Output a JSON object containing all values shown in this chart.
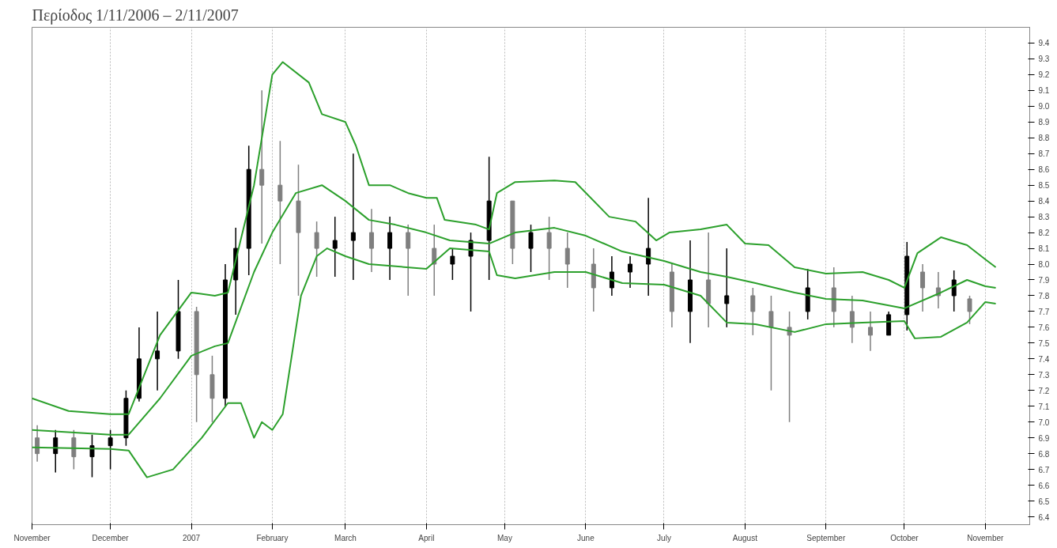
{
  "chart_data": {
    "type": "candlestick",
    "title": "Περίοδος 1/11/2006 – 2/11/2007",
    "colors": [
      "#7f7f7f",
      "#000000",
      "#7f7f7f",
      "#000000",
      "#000000",
      "#000000",
      "#000000",
      "#000000",
      "#000000",
      "#7f7f7f",
      "#7f7f7f",
      "#000000",
      "#000000",
      "#000000",
      "#7f7f7f",
      "#7f7f7f",
      "#7f7f7f",
      "#7f7f7f",
      "#000000",
      "#000000",
      "#7f7f7f",
      "#000000",
      "#7f7f7f",
      "#7f7f7f",
      "#000000",
      "#000000",
      "#000000",
      "#7f7f7f",
      "#000000",
      "#7f7f7f",
      "#7f7f7f",
      "#7f7f7f",
      "#000000",
      "#000000",
      "#000000",
      "#7f7f7f",
      "#000000",
      "#7f7f7f",
      "#000000",
      "#7f7f7f",
      "#7f7f7f",
      "#7f7f7f",
      "#000000",
      "#7f7f7f",
      "#7f7f7f",
      "#7f7f7f",
      "#000000",
      "#000000",
      "#7f7f7f",
      "#7f7f7f",
      "#000000",
      "#7f7f7f"
    ],
    "x": [
      "2006-11-03",
      "2006-11-10",
      "2006-11-17",
      "2006-11-24",
      "2006-12-01",
      "2006-12-07",
      "2006-12-12",
      "2006-12-19",
      "2006-12-27",
      "2007-01-03",
      "2007-01-09",
      "2007-01-14",
      "2007-01-18",
      "2007-01-23",
      "2007-01-28",
      "2007-02-04",
      "2007-02-11",
      "2007-02-18",
      "2007-02-25",
      "2007-03-04",
      "2007-03-11",
      "2007-03-18",
      "2007-03-25",
      "2007-04-04",
      "2007-04-11",
      "2007-04-18",
      "2007-04-25",
      "2007-05-04",
      "2007-05-11",
      "2007-05-18",
      "2007-05-25",
      "2007-06-04",
      "2007-06-11",
      "2007-06-18",
      "2007-06-25",
      "2007-07-04",
      "2007-07-11",
      "2007-07-18",
      "2007-07-25",
      "2007-08-04",
      "2007-08-11",
      "2007-08-18",
      "2007-08-25",
      "2007-09-04",
      "2007-09-11",
      "2007-09-18",
      "2007-09-25",
      "2007-10-02",
      "2007-10-08",
      "2007-10-14",
      "2007-10-20",
      "2007-10-26"
    ],
    "ohlc": [
      [
        6.9,
        6.98,
        6.75,
        6.8
      ],
      [
        6.8,
        6.95,
        6.68,
        6.9
      ],
      [
        6.9,
        6.95,
        6.7,
        6.78
      ],
      [
        6.78,
        6.92,
        6.65,
        6.85
      ],
      [
        6.85,
        6.95,
        6.7,
        6.9
      ],
      [
        6.9,
        7.2,
        6.85,
        7.15
      ],
      [
        7.15,
        7.6,
        7.13,
        7.4
      ],
      [
        7.4,
        7.7,
        7.2,
        7.45
      ],
      [
        7.45,
        7.9,
        7.4,
        7.7
      ],
      [
        7.7,
        7.73,
        7.0,
        7.3
      ],
      [
        7.3,
        7.42,
        7.0,
        7.15
      ],
      [
        7.15,
        8.0,
        7.1,
        7.9
      ],
      [
        7.9,
        8.23,
        7.68,
        8.1
      ],
      [
        8.1,
        8.75,
        7.93,
        8.6
      ],
      [
        8.6,
        9.1,
        8.13,
        8.5
      ],
      [
        8.5,
        8.78,
        8.0,
        8.4
      ],
      [
        8.4,
        8.63,
        7.8,
        8.2
      ],
      [
        8.2,
        8.27,
        7.92,
        8.1
      ],
      [
        8.1,
        8.3,
        7.92,
        8.15
      ],
      [
        8.15,
        8.7,
        7.9,
        8.2
      ],
      [
        8.2,
        8.35,
        7.95,
        8.1
      ],
      [
        8.1,
        8.3,
        7.9,
        8.2
      ],
      [
        8.2,
        8.25,
        7.8,
        8.1
      ],
      [
        8.1,
        8.25,
        7.8,
        8.0
      ],
      [
        8.0,
        8.1,
        7.9,
        8.05
      ],
      [
        8.05,
        8.2,
        7.7,
        8.15
      ],
      [
        8.15,
        8.68,
        7.9,
        8.4
      ],
      [
        8.4,
        8.4,
        8.0,
        8.1
      ],
      [
        8.1,
        8.25,
        7.95,
        8.2
      ],
      [
        8.2,
        8.3,
        7.9,
        8.1
      ],
      [
        8.1,
        8.2,
        7.85,
        8.0
      ],
      [
        8.0,
        8.1,
        7.7,
        7.85
      ],
      [
        7.85,
        8.05,
        7.8,
        7.95
      ],
      [
        7.95,
        8.05,
        7.85,
        8.0
      ],
      [
        8.0,
        8.42,
        7.8,
        8.1
      ],
      [
        7.95,
        8.0,
        7.6,
        7.7
      ],
      [
        7.7,
        8.15,
        7.5,
        7.9
      ],
      [
        7.9,
        8.2,
        7.6,
        7.75
      ],
      [
        7.75,
        8.1,
        7.6,
        7.8
      ],
      [
        7.8,
        7.85,
        7.55,
        7.7
      ],
      [
        7.7,
        7.8,
        7.2,
        7.6
      ],
      [
        7.6,
        7.7,
        7.0,
        7.55
      ],
      [
        7.7,
        7.97,
        7.65,
        7.85
      ],
      [
        7.85,
        7.98,
        7.6,
        7.7
      ],
      [
        7.7,
        7.8,
        7.5,
        7.6
      ],
      [
        7.6,
        7.7,
        7.45,
        7.55
      ],
      [
        7.55,
        7.7,
        7.55,
        7.68
      ],
      [
        7.68,
        8.14,
        7.58,
        8.05
      ],
      [
        7.95,
        8.0,
        7.7,
        7.85
      ],
      [
        7.85,
        7.95,
        7.72,
        7.8
      ],
      [
        7.8,
        7.96,
        7.7,
        7.9
      ],
      [
        7.78,
        7.8,
        7.62,
        7.7
      ]
    ],
    "series": [
      {
        "type": "line",
        "color": "#2ca02c",
        "x": [
          "2006-11-01",
          "2006-11-15",
          "2006-12-01",
          "2006-12-08",
          "2006-12-20",
          "2007-01-01",
          "2007-01-10",
          "2007-01-15",
          "2007-01-25",
          "2007-02-01",
          "2007-02-05",
          "2007-02-15",
          "2007-02-20",
          "2007-03-01",
          "2007-03-05",
          "2007-03-10",
          "2007-03-18",
          "2007-03-25",
          "2007-04-01",
          "2007-04-05",
          "2007-04-08",
          "2007-04-20",
          "2007-04-25",
          "2007-04-28",
          "2007-05-05",
          "2007-05-20",
          "2007-05-28",
          "2007-06-10",
          "2007-06-20",
          "2007-06-28",
          "2007-07-03",
          "2007-07-15",
          "2007-07-25",
          "2007-08-01",
          "2007-08-10",
          "2007-08-20",
          "2007-09-01",
          "2007-09-15",
          "2007-09-25",
          "2007-10-01",
          "2007-10-06",
          "2007-10-15",
          "2007-10-25",
          "2007-11-01",
          "2007-11-05"
        ],
        "values": [
          7.15,
          7.07,
          7.05,
          7.05,
          7.55,
          7.82,
          7.8,
          7.82,
          8.5,
          9.2,
          9.28,
          9.15,
          8.95,
          8.9,
          8.75,
          8.5,
          8.5,
          8.45,
          8.42,
          8.42,
          8.28,
          8.25,
          8.22,
          8.45,
          8.52,
          8.53,
          8.52,
          8.3,
          8.27,
          8.15,
          8.2,
          8.22,
          8.25,
          8.13,
          8.12,
          7.98,
          7.94,
          7.95,
          7.9,
          7.85,
          8.07,
          8.17,
          8.12,
          8.03,
          7.98
        ]
      },
      {
        "type": "line",
        "color": "#2ca02c",
        "x": [
          "2006-11-01",
          "2006-12-01",
          "2006-12-08",
          "2006-12-20",
          "2007-01-01",
          "2007-01-10",
          "2007-01-15",
          "2007-01-25",
          "2007-02-01",
          "2007-02-10",
          "2007-02-20",
          "2007-03-01",
          "2007-03-10",
          "2007-03-20",
          "2007-04-01",
          "2007-04-10",
          "2007-04-25",
          "2007-05-05",
          "2007-05-20",
          "2007-06-01",
          "2007-06-15",
          "2007-07-01",
          "2007-07-15",
          "2007-07-25",
          "2007-08-05",
          "2007-08-20",
          "2007-09-01",
          "2007-09-15",
          "2007-10-01",
          "2007-10-15",
          "2007-10-25",
          "2007-11-01",
          "2007-11-05"
        ],
        "values": [
          6.95,
          6.92,
          6.92,
          7.15,
          7.42,
          7.48,
          7.5,
          7.95,
          8.2,
          8.45,
          8.5,
          8.4,
          8.28,
          8.25,
          8.2,
          8.15,
          8.13,
          8.2,
          8.23,
          8.18,
          8.08,
          8.02,
          7.95,
          7.92,
          7.88,
          7.82,
          7.78,
          7.77,
          7.72,
          7.82,
          7.9,
          7.86,
          7.85
        ]
      },
      {
        "type": "line",
        "color": "#2ca02c",
        "x": [
          "2006-11-01",
          "2006-12-01",
          "2006-12-08",
          "2006-12-15",
          "2006-12-25",
          "2007-01-05",
          "2007-01-15",
          "2007-01-20",
          "2007-01-25",
          "2007-01-28",
          "2007-02-01",
          "2007-02-05",
          "2007-02-12",
          "2007-02-18",
          "2007-02-22",
          "2007-03-01",
          "2007-03-10",
          "2007-04-01",
          "2007-04-10",
          "2007-04-25",
          "2007-04-28",
          "2007-05-05",
          "2007-05-20",
          "2007-06-01",
          "2007-06-15",
          "2007-07-01",
          "2007-07-15",
          "2007-07-25",
          "2007-08-05",
          "2007-08-20",
          "2007-09-01",
          "2007-09-15",
          "2007-10-01",
          "2007-10-05",
          "2007-10-15",
          "2007-10-25",
          "2007-11-01",
          "2007-11-05"
        ],
        "values": [
          6.84,
          6.83,
          6.82,
          6.65,
          6.7,
          6.9,
          7.12,
          7.12,
          6.9,
          7.0,
          6.95,
          7.05,
          7.8,
          8.05,
          8.1,
          8.05,
          8.0,
          7.97,
          8.1,
          8.08,
          7.93,
          7.91,
          7.95,
          7.95,
          7.88,
          7.87,
          7.8,
          7.63,
          7.62,
          7.57,
          7.62,
          7.63,
          7.64,
          7.53,
          7.54,
          7.63,
          7.76,
          7.75
        ]
      }
    ],
    "xlim": [
      "2006-11-01",
      "2007-11-18"
    ],
    "xticks": [
      {
        "value": "2006-11-01",
        "label": "November"
      },
      {
        "value": "2006-12-01",
        "label": "December"
      },
      {
        "value": "2007-01-01",
        "label": "2007"
      },
      {
        "value": "2007-02-01",
        "label": "February"
      },
      {
        "value": "2007-03-01",
        "label": "March"
      },
      {
        "value": "2007-04-01",
        "label": "April"
      },
      {
        "value": "2007-05-01",
        "label": "May"
      },
      {
        "value": "2007-06-01",
        "label": "June"
      },
      {
        "value": "2007-07-01",
        "label": "July"
      },
      {
        "value": "2007-08-01",
        "label": "August"
      },
      {
        "value": "2007-09-01",
        "label": "September"
      },
      {
        "value": "2007-10-01",
        "label": "October"
      },
      {
        "value": "2007-11-01",
        "label": "November"
      }
    ],
    "ylim": [
      6.35,
      9.5
    ],
    "yticks": [
      6.4,
      6.5,
      6.6,
      6.7,
      6.8,
      6.9,
      {
        "value": 7.0,
        "label": "7.0"
      },
      7.1,
      7.2,
      7.3,
      7.4,
      7.5,
      7.6,
      7.7,
      7.8,
      7.9,
      {
        "value": 8.0,
        "label": "8.0"
      },
      8.1,
      8.2,
      8.3,
      8.4,
      8.5,
      8.6,
      8.7,
      8.8,
      8.9,
      {
        "value": 9.0,
        "label": "9.0"
      },
      9.1,
      9.2,
      9.3,
      9.4
    ],
    "grid": "x"
  }
}
